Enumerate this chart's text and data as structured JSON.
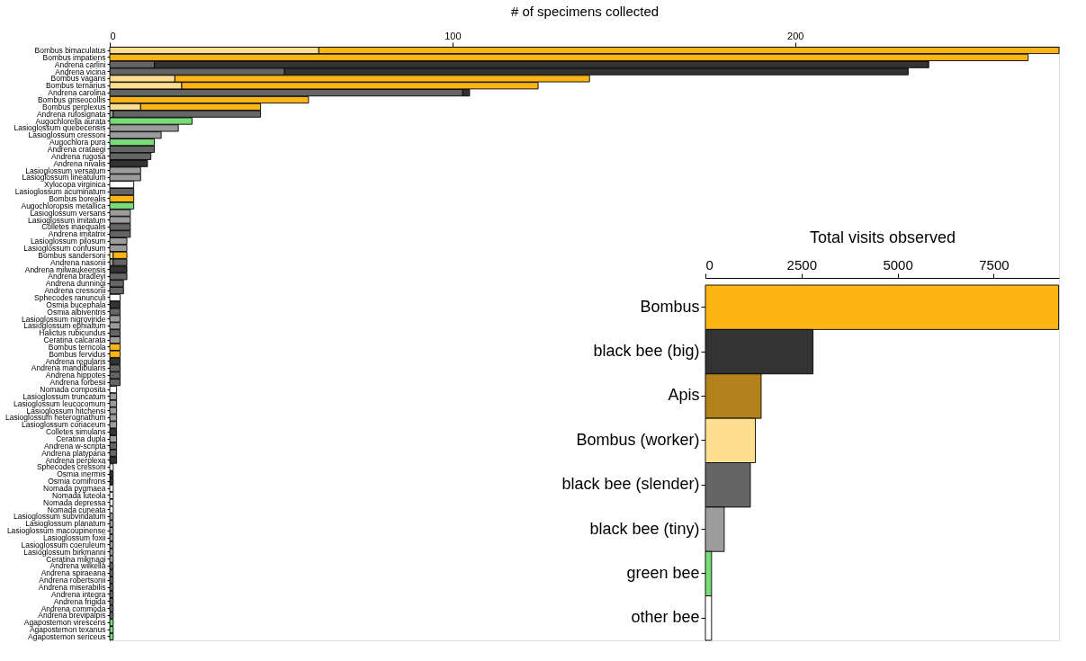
{
  "chart_data": [
    {
      "type": "bar",
      "orientation": "horizontal",
      "stacked": true,
      "xlabel": "# of specimens collected",
      "xlim": [
        0,
        277
      ],
      "xticks": [
        0,
        100,
        200
      ],
      "grid": false,
      "categories": [
        "Bombus bimaculatus",
        "Bombus impatiens",
        "Andrena carlini",
        "Andrena vicina",
        "Bombus vagans",
        "Bombus ternarius",
        "Andrena carolina",
        "Bombus griseocollis",
        "Bombus perplexus",
        "Andrena rufosignata",
        "Augochlorella aurata",
        "Lasioglossum quebecensis",
        "Lasioglossum cressoni",
        "Augochlora pura",
        "Andrena crataegi",
        "Andrena rugosa",
        "Andrena nivalis",
        "Lasioglossum versatum",
        "Lasioglossum lineatulum",
        "Xylocopa virginica",
        "Lasioglossum acuminatum",
        "Bombus borealis",
        "Augochloropsis metallica",
        "Lasioglossum versans",
        "Lasioglossum imitatum",
        "Colletes inaequalis",
        "Andrena imitatrix",
        "Lasioglossum pilosum",
        "Lasioglossum confusum",
        "Bombus sandersoni",
        "Andrena nasonii",
        "Andrena milwaukeensis",
        "Andrena bradleyi",
        "Andrena dunningi",
        "Andrena cressonii",
        "Sphecodes ranunculi",
        "Osmia bucephala",
        "Osmia albiventris",
        "Lasioglossum nigroviride",
        "Lasioglossum ephialtum",
        "Halictus rubicundus",
        "Ceratina calcarata",
        "Bombus terricola",
        "Bombus fervidus",
        "Andrena regularis",
        "Andrena mandibularis",
        "Andrena hippotes",
        "Andrena forbesii",
        "Nomada composita",
        "Lasioglossum truncatum",
        "Lasioglossum leucocomum",
        "Lasioglossum hitchensi",
        "Lasioglossum heterognathum",
        "Lasioglossum coriaceum",
        "Colletes simulans",
        "Ceratina dupla",
        "Andrena w-scripta",
        "Andrena platyparia",
        "Andrena perplexa",
        "Sphecodes cressoni",
        "Osmia inermis",
        "Osmia cornifrons",
        "Nomada pygmaea",
        "Nomada luteola",
        "Nomada depressa",
        "Nomada cuneata",
        "Lasioglossum subviridatum",
        "Lasioglossum planatum",
        "Lasioglossum macoupinense",
        "Lasioglossum foxii",
        "Lasioglossum coeruleum",
        "Lasioglossum birkmanni",
        "Ceratina mikmaqi",
        "Andrena wilkella",
        "Andrena spiraeana",
        "Andrena robertsonii",
        "Andrena miserabilis",
        "Andrena integra",
        "Andrena frigida",
        "Andrena commoda",
        "Andrena brevipalpis",
        "Agapostemon virescens",
        "Agapostemon texanus",
        "Agapostemon sericeus"
      ],
      "series": [
        {
          "color": "#fddf8f",
          "values": [
            61,
            null,
            null,
            null,
            19,
            21,
            null,
            null,
            9,
            null,
            null,
            null,
            null,
            null,
            null,
            null,
            null,
            null,
            null,
            null,
            null,
            null,
            null,
            null,
            null,
            null,
            null,
            null,
            null,
            1,
            null,
            null,
            null,
            null,
            null,
            null,
            null,
            null,
            null,
            null,
            null,
            null,
            null,
            null,
            null,
            null,
            null,
            null,
            null,
            null,
            null,
            null,
            null,
            null,
            null,
            null,
            null,
            null,
            null,
            null,
            null,
            null,
            null,
            null,
            null,
            null,
            null,
            null,
            null,
            null,
            null,
            null,
            null,
            null,
            null,
            null,
            null,
            null,
            null,
            null,
            null,
            null,
            null,
            null
          ]
        },
        {
          "color": "#9c9c9c",
          "values": [
            null,
            null,
            null,
            null,
            null,
            null,
            null,
            null,
            null,
            1,
            null,
            20,
            15,
            null,
            null,
            null,
            null,
            9,
            9,
            null,
            null,
            null,
            null,
            6,
            6,
            null,
            null,
            5,
            5,
            null,
            1,
            null,
            null,
            null,
            null,
            null,
            null,
            null,
            3,
            3,
            null,
            3,
            null,
            null,
            null,
            null,
            null,
            null,
            null,
            2,
            2,
            2,
            2,
            2,
            null,
            2,
            null,
            null,
            null,
            null,
            null,
            null,
            null,
            null,
            null,
            null,
            1,
            1,
            1,
            1,
            1,
            1,
            1,
            null,
            null,
            null,
            null,
            null,
            null,
            null,
            null,
            null,
            null,
            null
          ]
        },
        {
          "color": "#656565",
          "values": [
            null,
            null,
            13,
            51,
            null,
            null,
            103,
            null,
            null,
            43,
            null,
            null,
            null,
            null,
            13,
            12,
            null,
            null,
            null,
            null,
            7,
            null,
            null,
            null,
            null,
            6,
            6,
            null,
            null,
            null,
            4,
            null,
            5,
            4,
            4,
            null,
            null,
            3,
            null,
            null,
            3,
            null,
            null,
            null,
            null,
            3,
            3,
            3,
            null,
            null,
            null,
            null,
            null,
            null,
            null,
            null,
            2,
            2,
            null,
            null,
            null,
            null,
            null,
            null,
            null,
            null,
            null,
            null,
            null,
            null,
            null,
            null,
            null,
            1,
            1,
            1,
            1,
            1,
            1,
            1,
            1,
            null,
            null,
            null
          ]
        },
        {
          "color": "#333333",
          "values": [
            null,
            null,
            226,
            182,
            null,
            null,
            2,
            null,
            null,
            null,
            null,
            null,
            null,
            null,
            null,
            null,
            11,
            null,
            null,
            null,
            null,
            null,
            null,
            null,
            null,
            null,
            null,
            null,
            null,
            null,
            null,
            5,
            null,
            null,
            null,
            null,
            3,
            null,
            null,
            null,
            null,
            null,
            null,
            null,
            3,
            null,
            null,
            null,
            null,
            null,
            null,
            null,
            null,
            null,
            2,
            null,
            null,
            null,
            2,
            null,
            1,
            1,
            null,
            null,
            null,
            null,
            null,
            null,
            null,
            null,
            null,
            null,
            null,
            null,
            null,
            null,
            null,
            null,
            null,
            null,
            null,
            null,
            null,
            null
          ]
        },
        {
          "color": "#fdb515",
          "values": [
            216,
            268,
            null,
            null,
            121,
            104,
            null,
            58,
            35,
            null,
            null,
            null,
            null,
            null,
            null,
            null,
            null,
            null,
            null,
            null,
            null,
            7,
            null,
            null,
            null,
            null,
            null,
            null,
            null,
            4,
            null,
            null,
            null,
            null,
            null,
            null,
            null,
            null,
            null,
            null,
            null,
            null,
            3,
            3,
            null,
            null,
            null,
            null,
            null,
            null,
            null,
            null,
            null,
            null,
            null,
            null,
            null,
            null,
            null,
            null,
            null,
            null,
            null,
            null,
            null,
            null,
            null,
            null,
            null,
            null,
            null,
            null,
            null,
            null,
            null,
            null,
            null,
            null,
            null,
            null,
            null,
            null,
            null,
            null
          ]
        },
        {
          "color": "#78dc78",
          "values": [
            null,
            null,
            null,
            null,
            null,
            null,
            null,
            null,
            null,
            null,
            24,
            null,
            null,
            13,
            null,
            null,
            null,
            null,
            null,
            null,
            null,
            null,
            7,
            null,
            null,
            null,
            null,
            null,
            null,
            null,
            null,
            null,
            null,
            null,
            null,
            null,
            null,
            null,
            null,
            null,
            null,
            null,
            null,
            null,
            null,
            null,
            null,
            null,
            null,
            null,
            null,
            null,
            null,
            null,
            null,
            null,
            null,
            null,
            null,
            null,
            null,
            null,
            null,
            null,
            null,
            null,
            null,
            null,
            null,
            null,
            null,
            null,
            null,
            null,
            null,
            null,
            null,
            null,
            null,
            null,
            null,
            1,
            1,
            1
          ]
        },
        {
          "color": "#ffffff",
          "values": [
            null,
            null,
            null,
            null,
            null,
            null,
            null,
            null,
            null,
            null,
            null,
            null,
            null,
            null,
            null,
            null,
            null,
            null,
            null,
            7,
            null,
            null,
            null,
            null,
            null,
            null,
            null,
            null,
            null,
            null,
            null,
            null,
            null,
            null,
            null,
            3,
            null,
            null,
            null,
            null,
            null,
            null,
            null,
            null,
            null,
            null,
            null,
            null,
            2,
            null,
            null,
            null,
            null,
            null,
            null,
            null,
            null,
            null,
            null,
            1,
            null,
            null,
            1,
            1,
            1,
            1,
            null,
            null,
            null,
            null,
            null,
            null,
            null,
            null,
            null,
            null,
            null,
            null,
            null,
            null,
            null,
            null,
            null,
            null
          ]
        }
      ]
    },
    {
      "type": "bar",
      "orientation": "horizontal",
      "xlabel": "Total visits observed",
      "xlim": [
        0,
        9200
      ],
      "xticks": [
        0,
        2500,
        5000,
        7500
      ],
      "grid": false,
      "categories": [
        "Bombus",
        "black bee (big)",
        "Apis",
        "Bombus (worker)",
        "black bee (slender)",
        "black bee (tiny)",
        "green bee",
        "other bee"
      ],
      "values": [
        9190,
        2800,
        1450,
        1300,
        1170,
        490,
        160,
        160
      ],
      "colors": [
        "#fdb515",
        "#333333",
        "#b5811b",
        "#fddf8f",
        "#656565",
        "#9c9c9c",
        "#78dc78",
        "#ffffff"
      ]
    }
  ]
}
